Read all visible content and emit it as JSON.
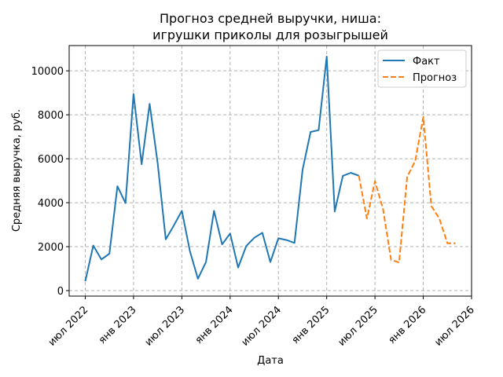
{
  "chart_data": {
    "type": "line",
    "title_lines": [
      "Прогноз средней выручки, ниша:",
      "игрушки приколы для розыгрышей"
    ],
    "xlabel": "Дата",
    "ylabel": "Средняя выручка, руб.",
    "x_tick_labels": [
      "июл 2022",
      "янв 2023",
      "июл 2023",
      "янв 2024",
      "июл 2024",
      "янв 2025",
      "июл 2025",
      "янв 2026",
      "июл 2026"
    ],
    "x_tick_dates": [
      "2022-07",
      "2023-01",
      "2023-07",
      "2024-01",
      "2024-07",
      "2025-01",
      "2025-07",
      "2026-01",
      "2026-07"
    ],
    "y_ticks": [
      0,
      2000,
      4000,
      6000,
      8000,
      10000
    ],
    "xlim": [
      "2022-05",
      "2026-07"
    ],
    "ylim": [
      -250,
      11150
    ],
    "grid": true,
    "legend_position": "top-right",
    "series": [
      {
        "name": "Факт",
        "color": "#1f77b4",
        "style": "solid",
        "x": [
          "2022-07",
          "2022-08",
          "2022-09",
          "2022-10",
          "2022-11",
          "2022-12",
          "2023-01",
          "2023-02",
          "2023-03",
          "2023-04",
          "2023-05",
          "2023-06",
          "2023-07",
          "2023-08",
          "2023-09",
          "2023-10",
          "2023-11",
          "2023-12",
          "2024-01",
          "2024-02",
          "2024-03",
          "2024-04",
          "2024-05",
          "2024-06",
          "2024-07",
          "2024-08",
          "2024-09",
          "2024-10",
          "2024-11",
          "2024-12",
          "2025-01",
          "2025-02",
          "2025-03",
          "2025-04",
          "2025-05"
        ],
        "values": [
          430,
          2050,
          1420,
          1680,
          4750,
          3980,
          8950,
          5750,
          8500,
          5800,
          2330,
          2960,
          3630,
          1800,
          540,
          1300,
          3630,
          2100,
          2600,
          1050,
          2030,
          2400,
          2630,
          1300,
          2380,
          2300,
          2170,
          5500,
          7220,
          7300,
          10650,
          3600,
          5220,
          5360,
          5230
        ]
      },
      {
        "name": "Прогноз",
        "color": "#ff7f0e",
        "style": "dashed",
        "x": [
          "2025-05",
          "2025-06",
          "2025-07",
          "2025-08",
          "2025-09",
          "2025-10",
          "2025-11",
          "2025-12",
          "2026-01",
          "2026-02",
          "2026-03",
          "2026-04",
          "2026-05"
        ],
        "values": [
          5230,
          3280,
          4980,
          3700,
          1400,
          1280,
          5180,
          5900,
          7900,
          3850,
          3280,
          2150,
          2150
        ]
      }
    ]
  }
}
